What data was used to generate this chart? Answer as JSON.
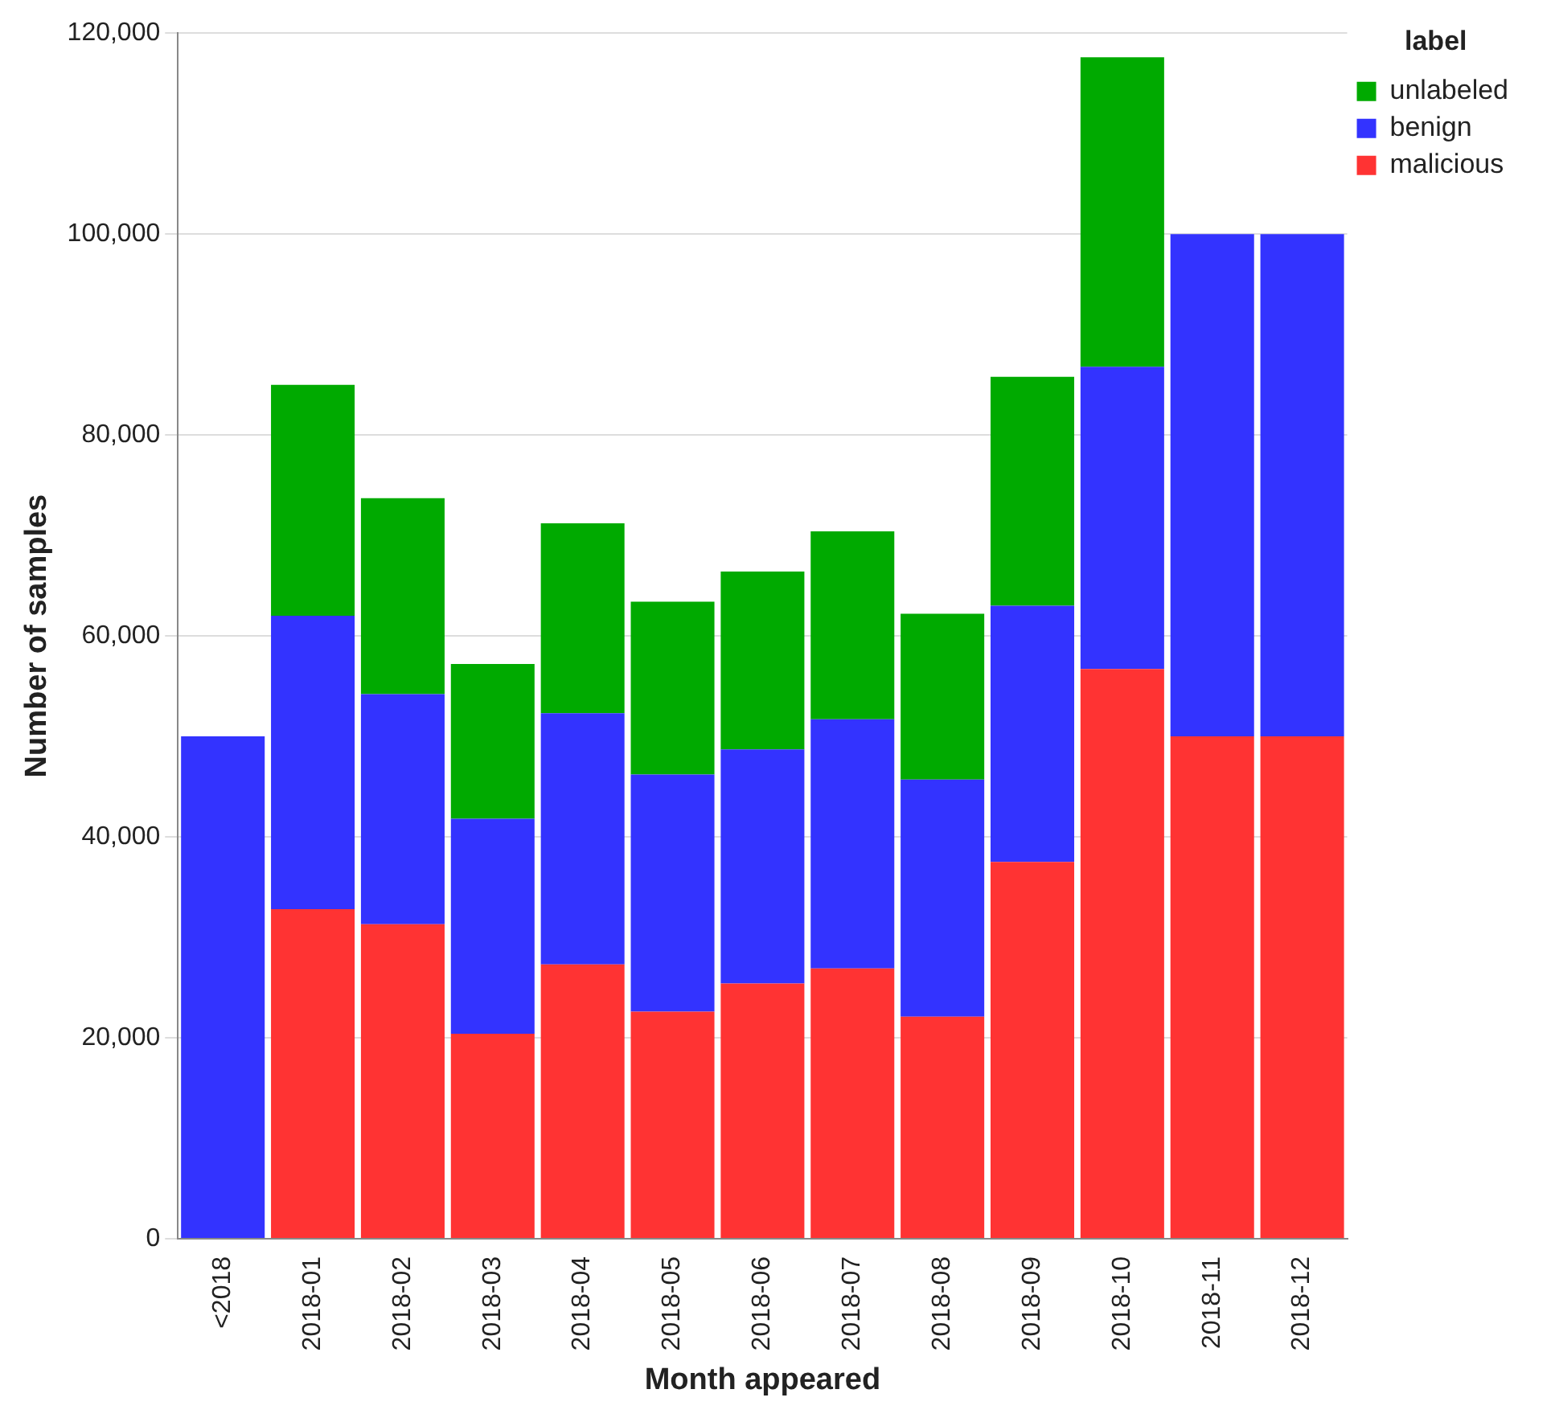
{
  "chart_data": {
    "type": "bar",
    "stacked": true,
    "xlabel": "Month appeared",
    "ylabel": "Number of samples",
    "legend_title": "label",
    "legend": "top right",
    "grid": "y",
    "categories": [
      "<2018",
      "2018-01",
      "2018-02",
      "2018-03",
      "2018-04",
      "2018-05",
      "2018-06",
      "2018-07",
      "2018-08",
      "2018-09",
      "2018-10",
      "2018-11",
      "2018-12"
    ],
    "series": [
      {
        "name": "malicious",
        "color": "#ff3333",
        "values": [
          0,
          32800,
          31300,
          20400,
          27300,
          22600,
          25400,
          26900,
          22100,
          37500,
          56700,
          50000,
          50000
        ]
      },
      {
        "name": "benign",
        "color": "#3333ff",
        "values": [
          50000,
          29200,
          22900,
          21400,
          25000,
          23600,
          23300,
          24800,
          23600,
          25500,
          30100,
          50000,
          50000
        ]
      },
      {
        "name": "unlabeled",
        "color": "#00aa00",
        "values": [
          0,
          23000,
          19500,
          15400,
          18900,
          17200,
          17700,
          18700,
          16500,
          22800,
          30800,
          0,
          0
        ]
      }
    ],
    "ylim": [
      0,
      120000
    ],
    "yticks": [
      0,
      {
        "value": 20000,
        "label": "20,000"
      },
      {
        "value": 40000,
        "label": "40,000"
      },
      {
        "value": 60000,
        "label": "60,000"
      },
      {
        "value": 80000,
        "label": "80,000"
      },
      {
        "value": 100000,
        "label": "100,000"
      },
      {
        "value": 120000,
        "label": "120,000"
      }
    ]
  }
}
